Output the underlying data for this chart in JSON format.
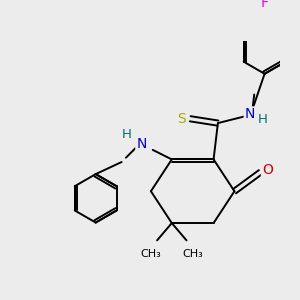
{
  "background_color": "#ececec",
  "atom_colors": {
    "C": "#000000",
    "N": "#0000cc",
    "O": "#cc0000",
    "S": "#aaaa00",
    "F": "#ee00ee",
    "H": "#007070"
  },
  "bond_color": "#000000",
  "figsize": [
    3.0,
    3.0
  ],
  "dpi": 100
}
